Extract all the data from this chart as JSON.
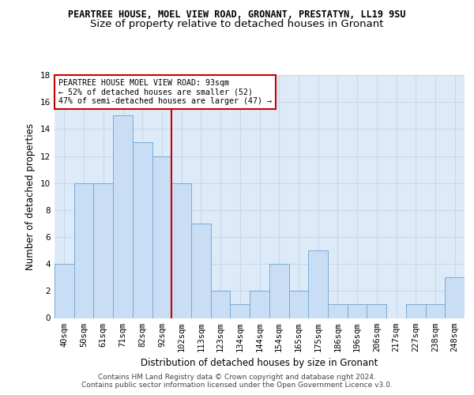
{
  "title": "PEARTREE HOUSE, MOEL VIEW ROAD, GRONANT, PRESTATYN, LL19 9SU",
  "subtitle": "Size of property relative to detached houses in Gronant",
  "xlabel": "Distribution of detached houses by size in Gronant",
  "ylabel": "Number of detached properties",
  "categories": [
    "40sqm",
    "50sqm",
    "61sqm",
    "71sqm",
    "82sqm",
    "92sqm",
    "102sqm",
    "113sqm",
    "123sqm",
    "134sqm",
    "144sqm",
    "154sqm",
    "165sqm",
    "175sqm",
    "186sqm",
    "196sqm",
    "206sqm",
    "217sqm",
    "227sqm",
    "238sqm",
    "248sqm"
  ],
  "values": [
    4,
    10,
    10,
    15,
    13,
    12,
    10,
    7,
    2,
    1,
    2,
    4,
    2,
    5,
    1,
    1,
    1,
    0,
    1,
    1,
    3
  ],
  "bar_color": "#c9ddf5",
  "bar_edge_color": "#7aaad4",
  "grid_color": "#c8d8ee",
  "bg_color": "#ddeaf8",
  "vline_x": 5.5,
  "vline_color": "#cc0000",
  "annotation_text": "PEARTREE HOUSE MOEL VIEW ROAD: 93sqm\n← 52% of detached houses are smaller (52)\n47% of semi-detached houses are larger (47) →",
  "annotation_box_color": "#ffffff",
  "annotation_box_edge": "#cc0000",
  "ylim": [
    0,
    18
  ],
  "yticks": [
    0,
    2,
    4,
    6,
    8,
    10,
    12,
    14,
    16,
    18
  ],
  "footer": "Contains HM Land Registry data © Crown copyright and database right 2024.\nContains public sector information licensed under the Open Government Licence v3.0.",
  "title_fontsize": 8.5,
  "subtitle_fontsize": 9.5,
  "xlabel_fontsize": 8.5,
  "ylabel_fontsize": 8.5,
  "tick_fontsize": 7.5,
  "footer_fontsize": 6.5
}
